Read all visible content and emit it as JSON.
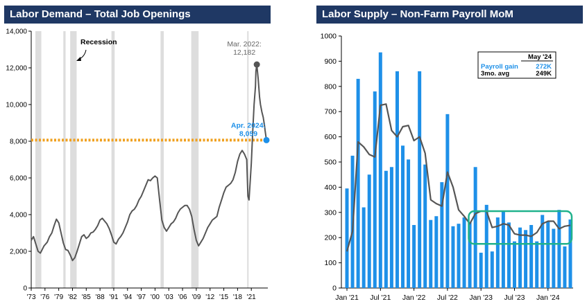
{
  "colors": {
    "header_bg": "#1f3864",
    "header_text": "#ffffff",
    "line": "#555555",
    "bar": "#1e90e8",
    "dots": "#f0a01e",
    "marker_blue": "#1e90e8",
    "marker_gray": "#555555",
    "recession": "#dddddd",
    "box": "#20b28c"
  },
  "chart_data": [
    {
      "type": "line",
      "title": "Labor Demand – Total Job Openings",
      "xlabel": "",
      "ylabel": "",
      "ylim": [
        0,
        14000
      ],
      "xlim": [
        1973,
        2024.6
      ],
      "y_ticks": [
        0,
        2000,
        4000,
        6000,
        8000,
        10000,
        12000,
        14000
      ],
      "y_tick_labels": [
        "0",
        "2,000",
        "4,000",
        "6,000",
        "8,000",
        "10,000",
        "12,000",
        "14,000"
      ],
      "x_ticks": [
        1973,
        1976,
        1979,
        1982,
        1985,
        1988,
        1991,
        1994,
        1997,
        2000,
        2003,
        2006,
        2009,
        2012,
        2015,
        2018,
        2021
      ],
      "x_tick_labels": [
        "'73",
        "'76",
        "'79",
        "'82",
        "'85",
        "'88",
        "'91",
        "'94",
        "'97",
        "'00",
        "'03",
        "'06",
        "'09",
        "'12",
        "'15",
        "'18",
        "'21"
      ],
      "recession_label": "Recession",
      "recessions": [
        [
          1973.9,
          1975.2
        ],
        [
          1980.0,
          1980.5
        ],
        [
          1981.5,
          1982.9
        ],
        [
          1990.5,
          1991.2
        ],
        [
          2001.2,
          2001.9
        ],
        [
          2007.9,
          2009.5
        ],
        [
          2020.1,
          2020.4
        ]
      ],
      "series": [
        {
          "name": "Total Job Openings",
          "x": [
            1973.0,
            1973.5,
            1974.0,
            1974.5,
            1975.0,
            1975.3,
            1975.8,
            1976.5,
            1977.0,
            1977.5,
            1978.0,
            1978.5,
            1979.0,
            1979.5,
            1980.0,
            1980.5,
            1981.0,
            1981.5,
            1982.0,
            1982.5,
            1983.0,
            1983.5,
            1984.0,
            1984.5,
            1985.0,
            1985.5,
            1986.0,
            1986.5,
            1987.0,
            1987.5,
            1988.0,
            1988.5,
            1989.0,
            1989.5,
            1990.0,
            1990.5,
            1991.0,
            1991.5,
            1992.0,
            1992.5,
            1993.0,
            1993.5,
            1994.0,
            1994.5,
            1995.0,
            1995.5,
            1996.0,
            1996.5,
            1997.0,
            1997.5,
            1998.0,
            1998.5,
            1999.0,
            1999.5,
            2000.0,
            2000.5,
            2001.0,
            2001.5,
            2002.0,
            2002.5,
            2003.0,
            2003.5,
            2004.0,
            2004.5,
            2005.0,
            2005.5,
            2006.0,
            2006.5,
            2007.0,
            2007.5,
            2008.0,
            2008.5,
            2009.0,
            2009.5,
            2010.0,
            2010.5,
            2011.0,
            2011.5,
            2012.0,
            2012.5,
            2013.0,
            2013.5,
            2014.0,
            2014.5,
            2015.0,
            2015.5,
            2016.0,
            2016.5,
            2017.0,
            2017.5,
            2018.0,
            2018.5,
            2019.0,
            2019.5,
            2020.0,
            2020.25,
            2020.5,
            2020.8,
            2021.0,
            2021.3,
            2021.6,
            2021.9,
            2022.0,
            2022.2,
            2022.5,
            2022.8,
            2023.0,
            2023.3,
            2023.6,
            2023.9,
            2024.0,
            2024.3
          ],
          "values": [
            2600,
            2800,
            2400,
            2000,
            1900,
            2050,
            2300,
            2500,
            2800,
            3000,
            3400,
            3750,
            3550,
            3000,
            2450,
            2100,
            2050,
            1800,
            1500,
            1650,
            2000,
            2400,
            2800,
            2900,
            2700,
            2800,
            3000,
            3050,
            3200,
            3400,
            3700,
            3800,
            3650,
            3500,
            3250,
            2900,
            2500,
            2400,
            2650,
            2800,
            3000,
            3300,
            3600,
            4000,
            4200,
            4300,
            4500,
            4800,
            5000,
            5300,
            5600,
            5900,
            5850,
            6000,
            6100,
            6000,
            4800,
            3700,
            3300,
            3100,
            3300,
            3500,
            3600,
            3800,
            4100,
            4300,
            4400,
            4500,
            4500,
            4300,
            3900,
            3200,
            2600,
            2300,
            2500,
            2700,
            3000,
            3300,
            3500,
            3700,
            3800,
            3900,
            4400,
            4800,
            5200,
            5500,
            5600,
            5700,
            5900,
            6300,
            6900,
            7300,
            7500,
            7300,
            7000,
            5000,
            4800,
            6000,
            6800,
            8500,
            10000,
            11000,
            11800,
            12182,
            11400,
            10400,
            10000,
            9600,
            9300,
            8800,
            8600,
            8059
          ]
        }
      ],
      "annotations": {
        "peak": {
          "label_line1": "Mar. 2022:",
          "label_line2": "12,182",
          "x": 2022.2,
          "y": 12182
        },
        "latest": {
          "label_line1": "Apr. 2024:",
          "label_line2": "8,059",
          "x": 2024.3,
          "y": 8059
        },
        "reference_level": 8059
      }
    },
    {
      "type": "bar",
      "title": "Labor Supply – Non-Farm Payroll MoM",
      "xlabel": "",
      "ylabel": "",
      "ylim": [
        0,
        1000
      ],
      "y_ticks": [
        0,
        100,
        200,
        300,
        400,
        500,
        600,
        700,
        800,
        900,
        1000
      ],
      "x_tick_labels": [
        "Jan '21",
        "Jul '21",
        "Jan '22",
        "Jul '22",
        "Jan '23",
        "Jul '23",
        "Jan '24"
      ],
      "x_tick_indices": [
        0,
        6,
        12,
        18,
        24,
        30,
        36
      ],
      "categories": [
        "Jan '21",
        "Feb '21",
        "Mar '21",
        "Apr '21",
        "May '21",
        "Jun '21",
        "Jul '21",
        "Aug '21",
        "Sep '21",
        "Oct '21",
        "Nov '21",
        "Dec '21",
        "Jan '22",
        "Feb '22",
        "Mar '22",
        "Apr '22",
        "May '22",
        "Jun '22",
        "Jul '22",
        "Aug '22",
        "Sep '22",
        "Oct '22",
        "Nov '22",
        "Dec '22",
        "Jan '23",
        "Feb '23",
        "Mar '23",
        "Apr '23",
        "May '23",
        "Jun '23",
        "Jul '23",
        "Aug '23",
        "Sep '23",
        "Oct '23",
        "Nov '23",
        "Dec '23",
        "Jan '24",
        "Feb '24",
        "Mar '24",
        "Apr '24",
        "May '24"
      ],
      "series": [
        {
          "name": "Payroll gain",
          "values": [
            395,
            525,
            830,
            320,
            450,
            780,
            935,
            465,
            480,
            860,
            565,
            510,
            250,
            860,
            490,
            270,
            285,
            420,
            690,
            245,
            255,
            280,
            260,
            480,
            140,
            330,
            145,
            280,
            305,
            260,
            185,
            240,
            230,
            250,
            185,
            290,
            265,
            235,
            310,
            165,
            272
          ]
        },
        {
          "name": "3mo. avg",
          "values": [
            145,
            225,
            580,
            560,
            530,
            520,
            725,
            730,
            625,
            600,
            640,
            645,
            585,
            600,
            535,
            350,
            335,
            325,
            460,
            400,
            310,
            285,
            255,
            295,
            305,
            305,
            240,
            245,
            255,
            250,
            215,
            210,
            210,
            205,
            220,
            255,
            265,
            265,
            235,
            245,
            249
          ]
        }
      ],
      "legend": {
        "header": "May '24",
        "rows": [
          {
            "label": "Payroll gain",
            "value": "272K"
          },
          {
            "label": "3mo. avg",
            "value": "249K"
          }
        ]
      },
      "highlight_range": [
        175,
        305
      ]
    }
  ]
}
